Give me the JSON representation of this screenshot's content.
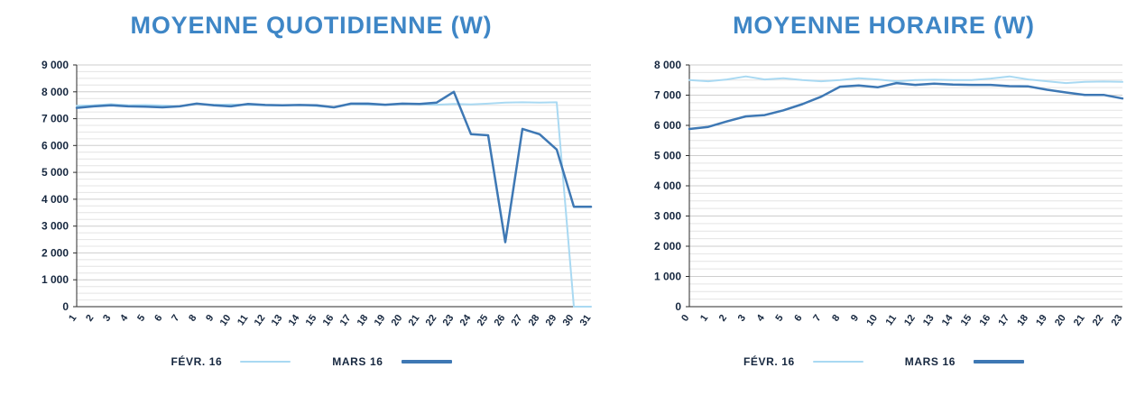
{
  "page": {
    "background": "#FFFFFF"
  },
  "colors": {
    "title": "#3E86C6",
    "axis_label": "#16273F",
    "grid_minor": "#E4E4E4",
    "grid_major": "#CECECE",
    "axis_line": "#2B2B2B",
    "series_fevr": "#A9D9F2",
    "series_mars": "#3E78B4"
  },
  "legend": {
    "items": [
      {
        "label": "FÉVR. 16",
        "color": "#A9D9F2",
        "thickness": 2
      },
      {
        "label": "MARS 16",
        "color": "#3E78B4",
        "thickness": 4
      }
    ]
  },
  "chart_data": [
    {
      "type": "line",
      "title": "MOYENNE QUOTIDIENNE (W)",
      "xlabel": "",
      "ylabel": "",
      "ylim": [
        0,
        9000
      ],
      "y_major_step": 1000,
      "y_minor_step": 250,
      "grid": true,
      "legend_position": "bottom",
      "y_tick_labels": [
        "0",
        "1 000",
        "2 000",
        "3 000",
        "4 000",
        "5 000",
        "6 000",
        "7 000",
        "8 000",
        "9 000"
      ],
      "categories": [
        "1",
        "2",
        "3",
        "4",
        "5",
        "6",
        "7",
        "8",
        "9",
        "10",
        "11",
        "12",
        "13",
        "14",
        "15",
        "16",
        "17",
        "18",
        "19",
        "20",
        "21",
        "22",
        "23",
        "24",
        "25",
        "26",
        "27",
        "28",
        "29",
        "30",
        "31"
      ],
      "series": [
        {
          "name": "FÉVR. 16",
          "color": "#A9D9F2",
          "values": [
            7480,
            7500,
            7540,
            7500,
            7510,
            7490,
            7460,
            7550,
            7520,
            7530,
            7510,
            7500,
            7490,
            7510,
            7470,
            7420,
            7540,
            7520,
            7510,
            7540,
            7530,
            7520,
            7550,
            7530,
            7560,
            7600,
            7610,
            7600,
            7610,
            0,
            0
          ]
        },
        {
          "name": "MARS 16",
          "color": "#3E78B4",
          "values": [
            7400,
            7460,
            7500,
            7460,
            7450,
            7420,
            7460,
            7560,
            7500,
            7460,
            7550,
            7510,
            7500,
            7510,
            7500,
            7420,
            7560,
            7560,
            7520,
            7560,
            7550,
            7600,
            8000,
            6420,
            6380,
            2400,
            6620,
            6420,
            5850,
            3720,
            3720
          ]
        }
      ]
    },
    {
      "type": "line",
      "title": "MOYENNE HORAIRE (W)",
      "xlabel": "",
      "ylabel": "",
      "ylim": [
        0,
        8000
      ],
      "y_major_step": 1000,
      "y_minor_step": 250,
      "grid": true,
      "legend_position": "bottom",
      "y_tick_labels": [
        "0",
        "1 000",
        "2 000",
        "3 000",
        "4 000",
        "5 000",
        "6 000",
        "7 000",
        "8 000"
      ],
      "categories": [
        "0",
        "1",
        "2",
        "3",
        "4",
        "5",
        "6",
        "7",
        "8",
        "9",
        "10",
        "11",
        "12",
        "13",
        "14",
        "15",
        "16",
        "17",
        "18",
        "19",
        "20",
        "21",
        "22",
        "23"
      ],
      "series": [
        {
          "name": "FÉVR. 16",
          "color": "#A9D9F2",
          "values": [
            7500,
            7460,
            7520,
            7620,
            7520,
            7560,
            7500,
            7460,
            7500,
            7560,
            7520,
            7460,
            7500,
            7510,
            7500,
            7500,
            7550,
            7620,
            7520,
            7460,
            7400,
            7440,
            7450,
            7440
          ]
        },
        {
          "name": "MARS 16",
          "color": "#3E78B4",
          "values": [
            5880,
            5950,
            6130,
            6300,
            6340,
            6500,
            6700,
            6950,
            7280,
            7320,
            7260,
            7400,
            7340,
            7380,
            7350,
            7340,
            7340,
            7300,
            7290,
            7180,
            7090,
            7010,
            7010,
            6890
          ]
        }
      ]
    }
  ]
}
